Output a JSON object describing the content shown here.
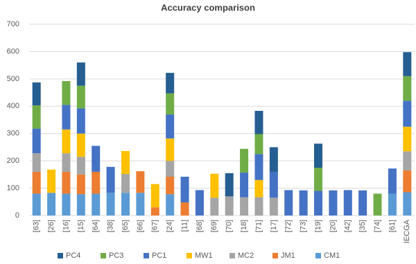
{
  "chart_data": {
    "type": "stacked_bar",
    "title": "Accuracy comparison",
    "categories": [
      "[63]",
      "[26]",
      "[16]",
      "[15]",
      "[64]",
      "[38]",
      "[65]",
      "[66]",
      "[67]",
      "[24]",
      "[11]",
      "[68]",
      "[69]",
      "[70]",
      "[18]",
      "[71]",
      "[17]",
      "[72]",
      "[73]",
      "[19]",
      "[20]",
      "[42]",
      "[35]",
      "[74]",
      "[61]",
      "IECGA"
    ],
    "series": [
      {
        "name": "CM1",
        "color": "#5b9bd5",
        "values": [
          80,
          83,
          80,
          78,
          80,
          83,
          83,
          83,
          null,
          78,
          null,
          null,
          null,
          null,
          null,
          null,
          null,
          null,
          null,
          null,
          null,
          null,
          null,
          null,
          80,
          85
        ]
      },
      {
        "name": "JM1",
        "color": "#ed7d31",
        "values": [
          80,
          null,
          80,
          72,
          80,
          null,
          null,
          79,
          30,
          64,
          48,
          null,
          null,
          null,
          null,
          null,
          null,
          null,
          null,
          null,
          null,
          null,
          null,
          null,
          null,
          80
        ]
      },
      {
        "name": "MC2",
        "color": "#a5a5a5",
        "values": [
          68,
          null,
          68,
          65,
          null,
          null,
          69,
          null,
          null,
          58,
          null,
          null,
          65,
          70,
          67,
          67,
          65,
          null,
          null,
          null,
          null,
          null,
          null,
          null,
          null,
          70
        ]
      },
      {
        "name": "MW1",
        "color": "#ffc000",
        "values": [
          null,
          85,
          87,
          85,
          null,
          null,
          84,
          null,
          85,
          82,
          null,
          null,
          88,
          null,
          null,
          63,
          null,
          null,
          null,
          null,
          null,
          null,
          null,
          null,
          null,
          90
        ]
      },
      {
        "name": "PC1",
        "color": "#4472c4",
        "values": [
          90,
          null,
          90,
          92,
          95,
          95,
          null,
          null,
          null,
          88,
          94,
          93,
          null,
          null,
          90,
          95,
          95,
          93,
          92,
          90,
          92,
          93,
          92,
          null,
          92,
          95
        ]
      },
      {
        "name": "PC3",
        "color": "#70ad47",
        "values": [
          85,
          null,
          87,
          83,
          null,
          null,
          null,
          null,
          null,
          77,
          null,
          null,
          null,
          null,
          87,
          73,
          null,
          null,
          null,
          85,
          null,
          null,
          null,
          80,
          null,
          90
        ]
      },
      {
        "name": "PC4",
        "color": "#255e91",
        "values": [
          84,
          null,
          null,
          85,
          null,
          null,
          null,
          null,
          null,
          75,
          null,
          null,
          null,
          85,
          null,
          85,
          90,
          null,
          null,
          88,
          null,
          null,
          null,
          null,
          null,
          88
        ]
      }
    ],
    "ylim": [
      0,
      700
    ],
    "yticks": [
      0,
      100,
      200,
      300,
      400,
      500,
      600,
      700
    ],
    "grid": true,
    "legend": "bottom"
  }
}
